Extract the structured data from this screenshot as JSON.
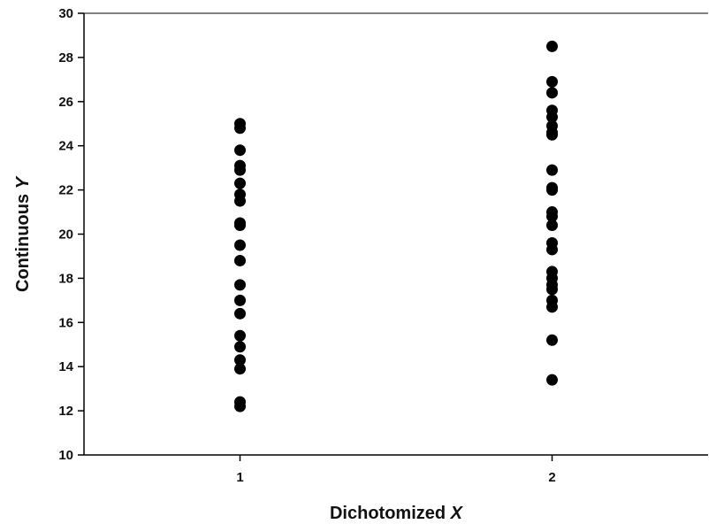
{
  "chart_data": {
    "type": "scatter",
    "xlabel_main": "Dichotomized ",
    "xlabel_var": "X",
    "ylabel_main": "Continuous ",
    "ylabel_var": "Y",
    "x_ticks": [
      1,
      2
    ],
    "y_ticks": [
      10,
      12,
      14,
      16,
      18,
      20,
      22,
      24,
      26,
      28,
      30
    ],
    "xlim": [
      0.5,
      2.5
    ],
    "ylim": [
      10,
      30
    ],
    "grid": false,
    "legend": "none",
    "marker_color": "#000000",
    "series": [
      {
        "x": 1,
        "values": [
          25.0,
          24.8,
          23.8,
          23.1,
          22.9,
          22.3,
          21.8,
          21.5,
          20.5,
          20.4,
          19.5,
          18.8,
          17.7,
          17.0,
          16.4,
          15.4,
          14.9,
          14.3,
          13.9,
          12.4,
          12.2
        ]
      },
      {
        "x": 2,
        "values": [
          28.5,
          26.9,
          26.4,
          25.6,
          25.3,
          24.9,
          24.6,
          24.5,
          22.9,
          22.1,
          22.0,
          21.0,
          20.8,
          20.4,
          19.6,
          19.3,
          18.3,
          18.0,
          17.7,
          17.5,
          17.0,
          16.7,
          15.2,
          13.4
        ]
      }
    ]
  }
}
